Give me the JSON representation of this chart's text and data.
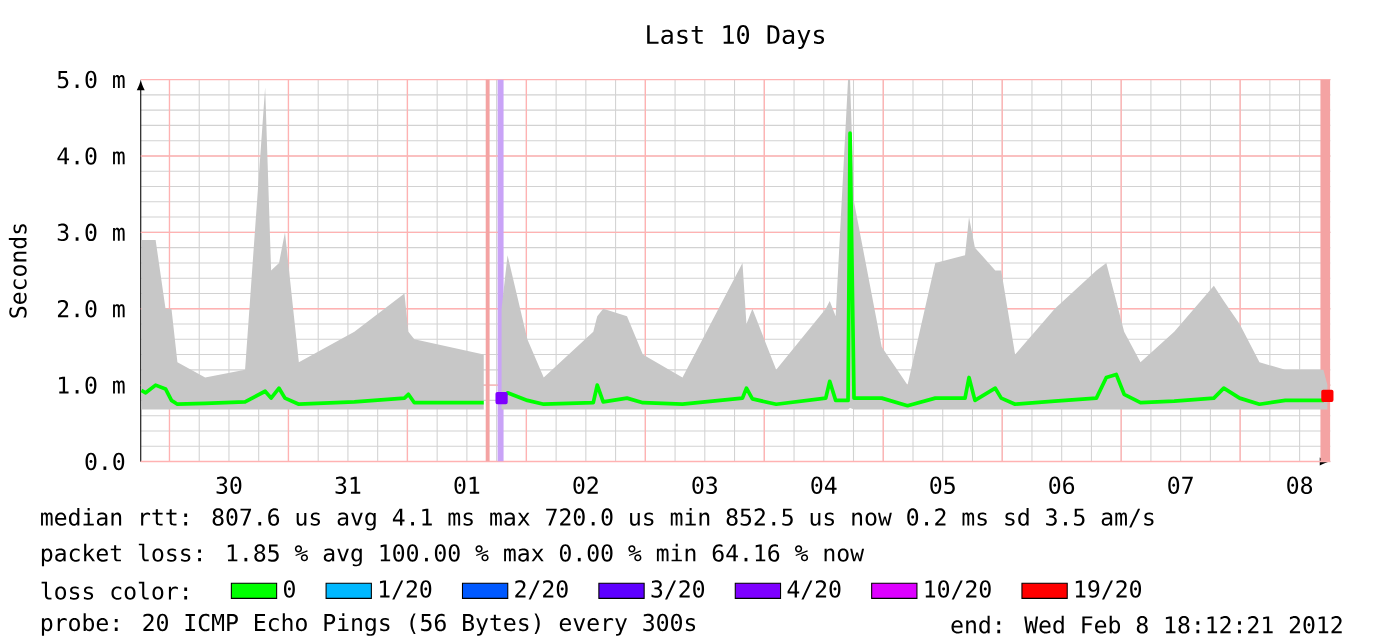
{
  "chart_data": {
    "type": "line",
    "title": "Last 10 Days",
    "ylabel": "Seconds",
    "legend_title": "loss color:",
    "xlim": [
      "2012-01-29T18:12",
      "2012-02-08T18:12"
    ],
    "xticks": [
      {
        "value": "2012-01-30T00:00",
        "label": null
      },
      {
        "value": "2012-01-30T06:00",
        "label": null
      },
      {
        "value": "2012-01-30T12:00",
        "label": "30"
      },
      {
        "value": "2012-01-30T18:00",
        "label": null
      },
      {
        "value": "2012-01-31T00:00",
        "label": null
      },
      {
        "value": "2012-01-31T06:00",
        "label": null
      },
      {
        "value": "2012-01-31T12:00",
        "label": "31"
      },
      {
        "value": "2012-01-31T18:00",
        "label": null
      },
      {
        "value": "2012-02-01T00:00",
        "label": null
      },
      {
        "value": "2012-02-01T06:00",
        "label": null
      },
      {
        "value": "2012-02-01T12:00",
        "label": "01"
      },
      {
        "value": "2012-02-01T18:00",
        "label": null
      },
      {
        "value": "2012-02-02T00:00",
        "label": null
      },
      {
        "value": "2012-02-02T06:00",
        "label": null
      },
      {
        "value": "2012-02-02T12:00",
        "label": "02"
      },
      {
        "value": "2012-02-02T18:00",
        "label": null
      },
      {
        "value": "2012-02-03T00:00",
        "label": null
      },
      {
        "value": "2012-02-03T06:00",
        "label": null
      },
      {
        "value": "2012-02-03T12:00",
        "label": "03"
      },
      {
        "value": "2012-02-03T18:00",
        "label": null
      },
      {
        "value": "2012-02-04T00:00",
        "label": null
      },
      {
        "value": "2012-02-04T06:00",
        "label": null
      },
      {
        "value": "2012-02-04T12:00",
        "label": "04"
      },
      {
        "value": "2012-02-04T18:00",
        "label": null
      },
      {
        "value": "2012-02-05T00:00",
        "label": null
      },
      {
        "value": "2012-02-05T06:00",
        "label": null
      },
      {
        "value": "2012-02-05T12:00",
        "label": "05"
      },
      {
        "value": "2012-02-05T18:00",
        "label": null
      },
      {
        "value": "2012-02-06T00:00",
        "label": null
      },
      {
        "value": "2012-02-06T06:00",
        "label": null
      },
      {
        "value": "2012-02-06T12:00",
        "label": "06"
      },
      {
        "value": "2012-02-06T18:00",
        "label": null
      },
      {
        "value": "2012-02-07T00:00",
        "label": null
      },
      {
        "value": "2012-02-07T06:00",
        "label": null
      },
      {
        "value": "2012-02-07T12:00",
        "label": "07"
      },
      {
        "value": "2012-02-07T18:00",
        "label": null
      },
      {
        "value": "2012-02-08T00:00",
        "label": null
      },
      {
        "value": "2012-02-08T06:00",
        "label": null
      },
      {
        "value": "2012-02-08T12:00",
        "label": "08"
      },
      {
        "value": "2012-02-08T18:00",
        "label": null
      }
    ],
    "ylim": [
      0,
      5
    ],
    "yticks": [
      {
        "value": 0,
        "label": "0.0"
      },
      {
        "value": 0.2,
        "label": null
      },
      {
        "value": 0.4,
        "label": null
      },
      {
        "value": 0.6,
        "label": null
      },
      {
        "value": 0.8,
        "label": null
      },
      {
        "value": 1,
        "label": "1.0 m"
      },
      {
        "value": 1.2,
        "label": null
      },
      {
        "value": 1.4,
        "label": null
      },
      {
        "value": 1.6,
        "label": null
      },
      {
        "value": 1.8,
        "label": null
      },
      {
        "value": 2,
        "label": "2.0 m"
      },
      {
        "value": 2.2,
        "label": null
      },
      {
        "value": 2.4,
        "label": null
      },
      {
        "value": 2.6,
        "label": null
      },
      {
        "value": 2.8,
        "label": null
      },
      {
        "value": 3,
        "label": "3.0 m"
      },
      {
        "value": 3.2,
        "label": null
      },
      {
        "value": 3.4,
        "label": null
      },
      {
        "value": 3.6,
        "label": null
      },
      {
        "value": 3.8,
        "label": null
      },
      {
        "value": 4,
        "label": "4.0 m"
      },
      {
        "value": 4.2,
        "label": null
      },
      {
        "value": 4.4,
        "label": null
      },
      {
        "value": 4.6,
        "label": null
      },
      {
        "value": 4.8,
        "label": null
      },
      {
        "value": 5,
        "label": "5.0 m"
      }
    ],
    "grid": true,
    "legend": "bottom",
    "marker": "none",
    "line_style": "solid",
    "x": [
      "2012-01-29T18:20",
      "2012-01-29T19:12",
      "2012-01-29T21:12",
      "2012-01-29T23:12",
      "2012-01-30T00:24",
      "2012-01-30T01:36",
      "2012-01-30T07:12",
      "2012-01-30T15:15",
      "2012-01-30T19:18",
      "2012-01-30T20:30",
      "2012-01-30T22:06",
      "2012-01-30T23:18",
      "2012-01-31T02:06",
      "2012-01-31T13:18",
      "2012-01-31T23:24",
      "2012-02-01T00:12",
      "2012-02-01T01:24",
      "2012-02-01T15:24",
      "2012-02-01T17:00",
      "2012-02-01T19:00",
      "2012-02-01T20:12",
      "2012-02-02T00:12",
      "2012-02-02T03:30",
      "2012-02-02T13:30",
      "2012-02-02T14:18",
      "2012-02-02T15:30",
      "2012-02-02T20:18",
      "2012-02-02T23:30",
      "2012-02-03T07:30",
      "2012-02-03T19:36",
      "2012-02-03T20:24",
      "2012-02-03T21:36",
      "2012-02-04T02:24",
      "2012-02-04T12:24",
      "2012-02-04T13:12",
      "2012-02-04T14:24",
      "2012-02-04T16:54",
      "2012-02-04T17:18",
      "2012-02-04T18:06",
      "2012-02-04T23:42",
      "2012-02-05T04:54",
      "2012-02-05T10:30",
      "2012-02-05T16:30",
      "2012-02-05T17:18",
      "2012-02-05T18:30",
      "2012-02-05T22:36",
      "2012-02-05T23:48",
      "2012-02-06T02:36",
      "2012-02-06T10:36",
      "2012-02-06T19:00",
      "2012-02-06T21:00",
      "2012-02-06T23:00",
      "2012-02-07T00:36",
      "2012-02-07T03:54",
      "2012-02-07T10:42",
      "2012-02-07T18:42",
      "2012-02-07T20:42",
      "2012-02-07T23:54",
      "2012-02-08T03:54",
      "2012-02-08T09:06",
      "2012-02-08T16:48",
      "2012-02-08T17:36"
    ],
    "series": [
      {
        "name": "0",
        "color": "#00ff00",
        "values": [
          0.93,
          0.9,
          1.0,
          0.95,
          0.8,
          0.75,
          0.76,
          0.78,
          0.92,
          0.83,
          0.96,
          0.83,
          0.75,
          0.78,
          0.83,
          0.88,
          0.77,
          0.77,
          null,
          0.83,
          0.9,
          0.8,
          0.75,
          0.77,
          1.0,
          0.78,
          0.83,
          0.77,
          0.75,
          0.83,
          0.96,
          0.82,
          0.75,
          0.83,
          1.05,
          0.8,
          0.8,
          4.3,
          0.83,
          0.83,
          0.73,
          0.83,
          0.83,
          1.1,
          0.8,
          0.96,
          0.83,
          0.75,
          0.79,
          0.83,
          1.1,
          1.14,
          0.88,
          0.77,
          0.79,
          0.83,
          0.96,
          0.83,
          0.75,
          0.8,
          0.8,
          0.86
        ],
        "lower": [
          0.68,
          0.68,
          0.68,
          0.68,
          0.68,
          0.68,
          0.68,
          0.68,
          0.68,
          0.68,
          0.68,
          0.68,
          0.68,
          0.68,
          0.68,
          0.68,
          0.68,
          0.68,
          null,
          0.68,
          0.68,
          0.68,
          0.68,
          0.68,
          0.68,
          0.68,
          0.68,
          0.68,
          0.68,
          0.68,
          0.68,
          0.68,
          0.68,
          0.68,
          0.68,
          0.68,
          0.68,
          0.7,
          0.68,
          0.68,
          0.68,
          0.68,
          0.68,
          0.68,
          0.68,
          0.68,
          0.68,
          0.68,
          0.68,
          0.68,
          0.68,
          0.68,
          0.68,
          0.68,
          0.68,
          0.68,
          0.68,
          0.68,
          0.68,
          0.68,
          0.68,
          0.68
        ],
        "upper": [
          2.9,
          2.9,
          2.9,
          2.0,
          2.0,
          1.3,
          1.1,
          1.2,
          4.9,
          2.5,
          2.6,
          3.0,
          1.3,
          1.7,
          2.2,
          1.7,
          1.6,
          1.4,
          null,
          2.0,
          2.7,
          1.6,
          1.1,
          1.7,
          1.9,
          2.0,
          1.9,
          1.4,
          1.1,
          2.6,
          1.8,
          2.0,
          1.2,
          2.0,
          2.1,
          1.9,
          5.0,
          5.0,
          3.4,
          1.5,
          1.0,
          2.6,
          2.7,
          3.2,
          2.8,
          2.5,
          2.5,
          1.4,
          2.0,
          2.5,
          2.6,
          2.1,
          1.7,
          1.3,
          1.7,
          2.3,
          2.1,
          1.8,
          1.3,
          1.2,
          1.2,
          1.0
        ]
      },
      {
        "name": "1/20",
        "color": "#00b8ff",
        "values": [
          null,
          null,
          null,
          null,
          null,
          null,
          null,
          null,
          null,
          null,
          null,
          null,
          null,
          null,
          null,
          null,
          null,
          null,
          null,
          null,
          null,
          null,
          null,
          null,
          null,
          null,
          null,
          null,
          null,
          null,
          null,
          null,
          null,
          null,
          null,
          null,
          null,
          null,
          null,
          null,
          null,
          null,
          null,
          null,
          null,
          null,
          null,
          null,
          null,
          null,
          null,
          null,
          null,
          null,
          null,
          null,
          null,
          null,
          null,
          null,
          null,
          null
        ]
      },
      {
        "name": "2/20",
        "color": "#0059ff",
        "values": [
          null,
          null,
          null,
          null,
          null,
          null,
          null,
          null,
          null,
          null,
          null,
          null,
          null,
          null,
          null,
          null,
          null,
          null,
          null,
          null,
          null,
          null,
          null,
          null,
          null,
          null,
          null,
          null,
          null,
          null,
          null,
          null,
          null,
          null,
          null,
          null,
          null,
          null,
          null,
          null,
          null,
          null,
          null,
          null,
          null,
          null,
          null,
          null,
          null,
          null,
          null,
          null,
          null,
          null,
          null,
          null,
          null,
          null,
          null,
          null,
          null,
          null
        ]
      },
      {
        "name": "3/20",
        "color": "#5e00ff",
        "values": [
          null,
          null,
          null,
          null,
          null,
          null,
          null,
          null,
          null,
          null,
          null,
          null,
          null,
          null,
          null,
          null,
          null,
          null,
          null,
          null,
          null,
          null,
          null,
          null,
          null,
          null,
          null,
          null,
          null,
          null,
          null,
          null,
          null,
          null,
          null,
          null,
          null,
          null,
          null,
          null,
          null,
          null,
          null,
          null,
          null,
          null,
          null,
          null,
          null,
          null,
          null,
          null,
          null,
          null,
          null,
          null,
          null,
          null,
          null,
          null,
          null,
          null
        ]
      },
      {
        "name": "4/20",
        "color": "#7e00ff",
        "marker": "square",
        "values": [
          null,
          null,
          null,
          null,
          null,
          null,
          null,
          null,
          null,
          null,
          null,
          null,
          null,
          null,
          null,
          null,
          null,
          null,
          null,
          0.83,
          null,
          null,
          null,
          null,
          null,
          null,
          null,
          null,
          null,
          null,
          null,
          null,
          null,
          null,
          null,
          null,
          null,
          null,
          null,
          null,
          null,
          null,
          null,
          null,
          null,
          null,
          null,
          null,
          null,
          null,
          null,
          null,
          null,
          null,
          null,
          null,
          null,
          null,
          null,
          null,
          null,
          null
        ]
      },
      {
        "name": "10/20",
        "color": "#dd00ff",
        "values": [
          null,
          null,
          null,
          null,
          null,
          null,
          null,
          null,
          null,
          null,
          null,
          null,
          null,
          null,
          null,
          null,
          null,
          null,
          null,
          null,
          null,
          null,
          null,
          null,
          null,
          null,
          null,
          null,
          null,
          null,
          null,
          null,
          null,
          null,
          null,
          null,
          null,
          null,
          null,
          null,
          null,
          null,
          null,
          null,
          null,
          null,
          null,
          null,
          null,
          null,
          null,
          null,
          null,
          null,
          null,
          null,
          null,
          null,
          null,
          null,
          null,
          null
        ]
      },
      {
        "name": "19/20",
        "color": "#ff0000",
        "marker": "square",
        "values": [
          null,
          null,
          null,
          null,
          null,
          null,
          null,
          null,
          null,
          null,
          null,
          null,
          null,
          null,
          null,
          null,
          null,
          null,
          null,
          null,
          null,
          null,
          null,
          null,
          null,
          null,
          null,
          null,
          null,
          null,
          null,
          null,
          null,
          null,
          null,
          null,
          null,
          null,
          null,
          null,
          null,
          null,
          null,
          null,
          null,
          null,
          null,
          null,
          null,
          null,
          null,
          null,
          null,
          null,
          null,
          null,
          null,
          null,
          null,
          null,
          null,
          0.86
        ]
      }
    ],
    "bands": [
      {
        "axis": "x",
        "from": "2012-02-01T15:48",
        "to": "2012-02-01T16:36",
        "color": "#f4a3a3"
      },
      {
        "axis": "x",
        "from": "2012-02-01T18:12",
        "to": "2012-02-01T19:24",
        "color": "#c9a3f7"
      },
      {
        "axis": "x",
        "from": "2012-02-08T16:12",
        "to": "2012-02-08T18:12",
        "color": "#f4a3a3"
      }
    ],
    "annotations": [
      "median rtt:  807.6 us avg  4.1 ms max  720.0 us min  852.5 us now  0.2 ms sd  3.5   am/s",
      "packet loss: 1.85 % avg  100.00 % max  0.00 % min  64.16 % now",
      "probe:       20 ICMP Echo Pings (56 Bytes) every 300s",
      "end: Wed Feb  8 18:12:21 2012"
    ]
  }
}
